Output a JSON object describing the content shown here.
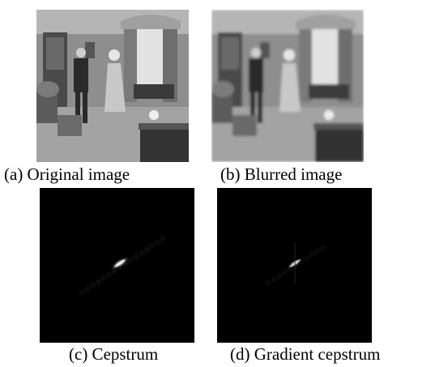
{
  "panels": [
    {
      "caption": "(a) Original image"
    },
    {
      "caption": "(b) Blurred image"
    },
    {
      "caption": "(c) Cepstrum"
    },
    {
      "caption": "(d) Gradient cepstrum"
    }
  ]
}
